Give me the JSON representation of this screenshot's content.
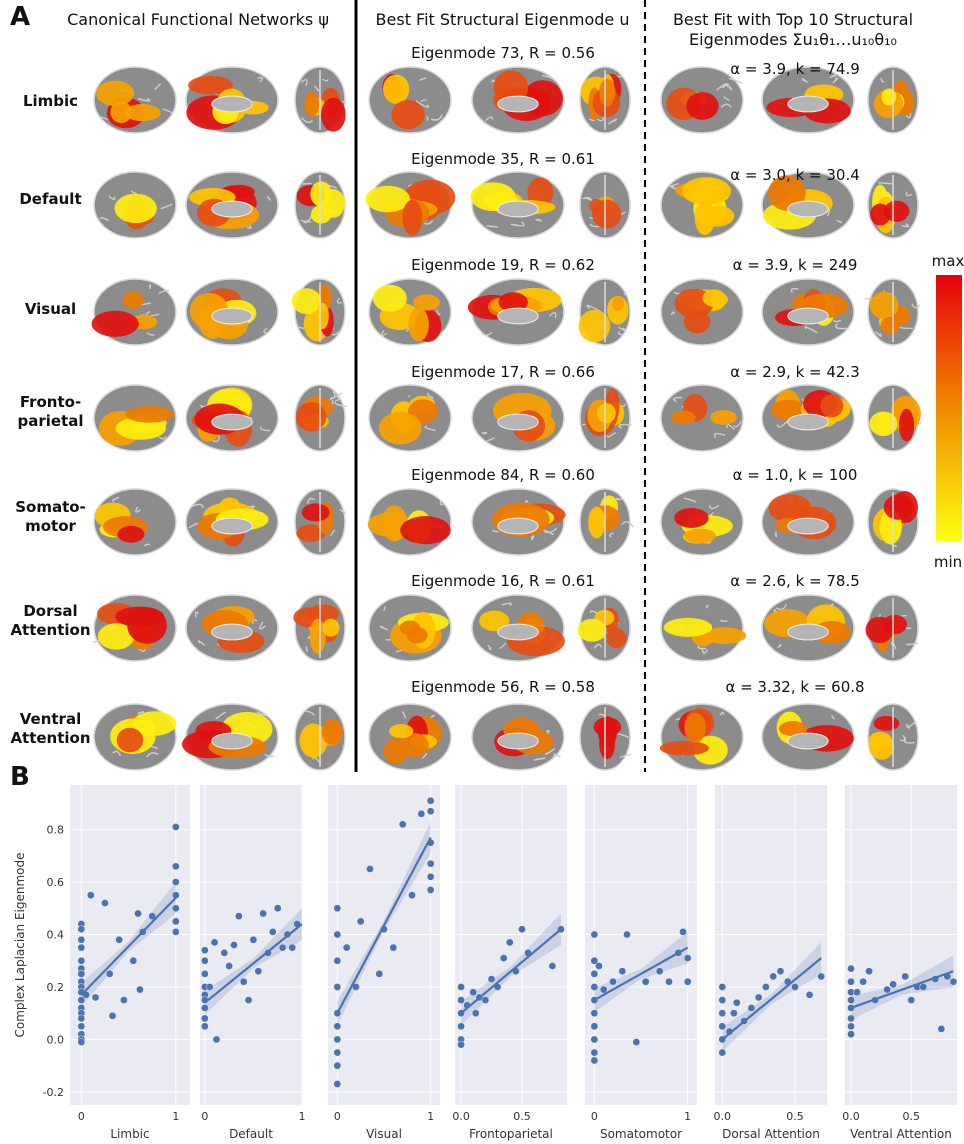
{
  "panel_a": {
    "label": "A",
    "headers": [
      "Canonical Functional Networks ψ",
      "Best Fit Structural Eigenmode u",
      "Best Fit with Top 10 Structural\nEigenmodes Σu₁θ₁…u₁₀θ₁₀"
    ],
    "rows": [
      {
        "label": "Limbic",
        "eigenmode": "Eigenmode 73, R = 0.56",
        "combined": "α = 3.9, k =  74.9"
      },
      {
        "label": "Default",
        "eigenmode": "Eigenmode 35, R = 0.61",
        "combined": "α = 3.0, k = 30.4"
      },
      {
        "label": "Visual",
        "eigenmode": "Eigenmode 19, R = 0.62",
        "combined": "α = 3.9, k = 249"
      },
      {
        "label": "Fronto-\nparietal",
        "eigenmode": "Eigenmode 17, R = 0.66",
        "combined": "α = 2.9, k = 42.3"
      },
      {
        "label": "Somato-\nmotor",
        "eigenmode": "Eigenmode 84, R = 0.60",
        "combined": "α = 1.0, k = 100"
      },
      {
        "label": "Dorsal\nAttention",
        "eigenmode": "Eigenmode 16, R = 0.61",
        "combined": "α = 2.6, k =  78.5"
      },
      {
        "label": "Ventral\nAttention",
        "eigenmode": "Eigenmode 56, R = 0.58",
        "combined": "α = 3.32, k = 60.8"
      }
    ],
    "colorbar": {
      "max": "max",
      "min": "min"
    }
  },
  "panel_b": {
    "label": "B"
  },
  "chart_data": [
    {
      "type": "scatter",
      "xlabel": "Limbic",
      "ylabel": "Complex Laplacian Eigenmode",
      "color": "#4c72b0",
      "x": [
        0,
        0,
        0,
        0,
        0,
        0,
        0,
        0,
        0,
        0,
        0,
        0,
        0,
        0,
        0,
        0,
        0,
        0,
        0.05,
        0.1,
        0.15,
        0.25,
        0.3,
        0.33,
        0.4,
        0.45,
        0.55,
        0.6,
        0.62,
        0.65,
        0.75,
        1,
        1,
        1,
        1,
        1,
        1,
        1
      ],
      "y": [
        0.44,
        0.42,
        0.38,
        0.35,
        0.3,
        0.27,
        0.25,
        0.22,
        0.2,
        0.18,
        0.15,
        0.12,
        0.1,
        0.08,
        0.05,
        0.02,
        0.0,
        -0.01,
        0.17,
        0.55,
        0.16,
        0.52,
        0.25,
        0.09,
        0.38,
        0.15,
        0.3,
        0.48,
        0.19,
        0.41,
        0.47,
        0.81,
        0.66,
        0.6,
        0.55,
        0.5,
        0.45,
        0.41
      ],
      "fit": {
        "x": [
          0,
          1
        ],
        "y": [
          0.17,
          0.54
        ]
      },
      "xlim": [
        -0.12,
        1.15
      ],
      "xticks": [
        0,
        1
      ],
      "ylim": [
        -0.25,
        0.97
      ],
      "yticks": [
        -0.2,
        {
          "value": 0,
          "label": "0.0"
        },
        0.2,
        0.4,
        0.6,
        0.8
      ],
      "grid": true
    },
    {
      "type": "scatter",
      "xlabel": "Default",
      "color": "#4c72b0",
      "x": [
        0,
        0,
        0,
        0,
        0,
        0,
        0,
        0,
        0,
        0.05,
        0.1,
        0.12,
        0.2,
        0.25,
        0.3,
        0.35,
        0.4,
        0.45,
        0.5,
        0.55,
        0.6,
        0.65,
        0.7,
        0.75,
        0.8,
        0.85,
        0.9,
        0.95
      ],
      "y": [
        0.34,
        0.3,
        0.25,
        0.2,
        0.17,
        0.15,
        0.12,
        0.08,
        0.05,
        0.2,
        0.37,
        0.0,
        0.33,
        0.28,
        0.36,
        0.47,
        0.22,
        0.15,
        0.38,
        0.26,
        0.48,
        0.33,
        0.41,
        0.5,
        0.35,
        0.4,
        0.35,
        0.44
      ],
      "fit": {
        "x": [
          0,
          1
        ],
        "y": [
          0.14,
          0.44
        ]
      },
      "xlim": [
        -0.05,
        1.0
      ],
      "xticks": [
        0,
        1
      ],
      "ylim": [
        -0.25,
        0.97
      ],
      "yticks": [
        -0.2,
        0,
        0.2,
        0.4,
        0.6,
        0.8
      ],
      "grid": true
    },
    {
      "type": "scatter",
      "xlabel": "Visual",
      "color": "#4c72b0",
      "x": [
        0,
        0,
        0,
        0,
        0,
        0,
        0,
        0,
        0,
        0,
        0.1,
        0.2,
        0.25,
        0.35,
        0.45,
        0.5,
        0.6,
        0.7,
        0.8,
        0.9,
        1,
        1,
        1,
        1,
        1,
        1
      ],
      "y": [
        0.5,
        0.4,
        0.3,
        0.2,
        0.1,
        0.05,
        0.0,
        -0.05,
        -0.1,
        -0.17,
        0.35,
        0.2,
        0.45,
        0.65,
        0.25,
        0.42,
        0.35,
        0.82,
        0.55,
        0.86,
        0.91,
        0.87,
        0.75,
        0.67,
        0.62,
        0.57
      ],
      "fit": {
        "x": [
          0,
          1
        ],
        "y": [
          0.1,
          0.77
        ]
      },
      "xlim": [
        -0.1,
        1.1
      ],
      "xticks": [
        0,
        1
      ],
      "ylim": [
        -0.25,
        0.97
      ],
      "yticks": [
        -0.2,
        0,
        0.2,
        0.4,
        0.6,
        0.8
      ],
      "grid": true
    },
    {
      "type": "scatter",
      "xlabel": "Frontoparietal",
      "color": "#4c72b0",
      "x": [
        0,
        0,
        0,
        0,
        0,
        0,
        0.05,
        0.1,
        0.12,
        0.15,
        0.2,
        0.25,
        0.3,
        0.35,
        0.4,
        0.45,
        0.5,
        0.55,
        0.75,
        0.82
      ],
      "y": [
        0.2,
        0.15,
        0.1,
        0.05,
        0.0,
        -0.02,
        0.13,
        0.18,
        0.1,
        0.16,
        0.15,
        0.23,
        0.2,
        0.31,
        0.37,
        0.26,
        0.42,
        0.33,
        0.28,
        0.42
      ],
      "fit": {
        "x": [
          0,
          0.82
        ],
        "y": [
          0.1,
          0.42
        ]
      },
      "xlim": [
        -0.05,
        0.87
      ],
      "xticks": [
        {
          "value": 0,
          "label": "0.0"
        },
        0.5
      ],
      "ylim": [
        -0.25,
        0.97
      ],
      "yticks": [
        -0.2,
        0,
        0.2,
        0.4,
        0.6,
        0.8
      ],
      "grid": true
    },
    {
      "type": "scatter",
      "xlabel": "Somatomotor",
      "color": "#4c72b0",
      "x": [
        0,
        0,
        0,
        0,
        0,
        0,
        0,
        0,
        0,
        0,
        0.05,
        0.1,
        0.2,
        0.3,
        0.35,
        0.45,
        0.55,
        0.7,
        0.8,
        0.9,
        0.95,
        1,
        1
      ],
      "y": [
        0.4,
        0.3,
        0.25,
        0.2,
        0.15,
        0.1,
        0.05,
        0.0,
        -0.05,
        -0.08,
        0.28,
        0.19,
        0.22,
        0.26,
        0.4,
        -0.01,
        0.22,
        0.26,
        0.22,
        0.33,
        0.41,
        0.31,
        0.22
      ],
      "fit": {
        "x": [
          0,
          1
        ],
        "y": [
          0.15,
          0.35
        ]
      },
      "xlim": [
        -0.1,
        1.1
      ],
      "xticks": [
        0,
        1
      ],
      "ylim": [
        -0.25,
        0.97
      ],
      "yticks": [
        -0.2,
        0,
        0.2,
        0.4,
        0.6,
        0.8
      ],
      "grid": true
    },
    {
      "type": "scatter",
      "xlabel": "Dorsal Attention",
      "color": "#4c72b0",
      "x": [
        0,
        0,
        0,
        0,
        0,
        0,
        0.05,
        0.08,
        0.1,
        0.15,
        0.2,
        0.25,
        0.3,
        0.35,
        0.4,
        0.45,
        0.5,
        0.6,
        0.68
      ],
      "y": [
        0.2,
        0.15,
        0.1,
        0.05,
        0.0,
        -0.05,
        0.03,
        0.1,
        0.14,
        0.07,
        0.12,
        0.16,
        0.2,
        0.24,
        0.26,
        0.22,
        0.2,
        0.17,
        0.24
      ],
      "fit": {
        "x": [
          0,
          0.68
        ],
        "y": [
          0.0,
          0.31
        ]
      },
      "xlim": [
        -0.05,
        0.72
      ],
      "xticks": [
        {
          "value": 0,
          "label": "0.0"
        },
        0.5
      ],
      "ylim": [
        -0.25,
        0.97
      ],
      "yticks": [
        -0.2,
        0,
        0.2,
        0.4,
        0.6,
        0.8
      ],
      "grid": true
    },
    {
      "type": "scatter",
      "xlabel": "Ventral Attention",
      "color": "#4c72b0",
      "x": [
        0,
        0,
        0,
        0,
        0,
        0,
        0,
        0,
        0.05,
        0.1,
        0.15,
        0.2,
        0.3,
        0.35,
        0.45,
        0.5,
        0.55,
        0.6,
        0.7,
        0.75,
        0.8,
        0.85
      ],
      "y": [
        0.27,
        0.22,
        0.18,
        0.15,
        0.12,
        0.08,
        0.05,
        0.02,
        0.18,
        0.22,
        0.26,
        0.15,
        0.19,
        0.21,
        0.24,
        0.15,
        0.2,
        0.2,
        0.23,
        0.04,
        0.24,
        0.22
      ],
      "fit": {
        "x": [
          0,
          0.85
        ],
        "y": [
          0.12,
          0.26
        ]
      },
      "xlim": [
        -0.05,
        0.88
      ],
      "xticks": [
        {
          "value": 0,
          "label": "0.0"
        },
        0.5
      ],
      "ylim": [
        -0.25,
        0.97
      ],
      "yticks": [
        -0.2,
        0,
        0.2,
        0.4,
        0.6,
        0.8
      ],
      "grid": true
    }
  ]
}
